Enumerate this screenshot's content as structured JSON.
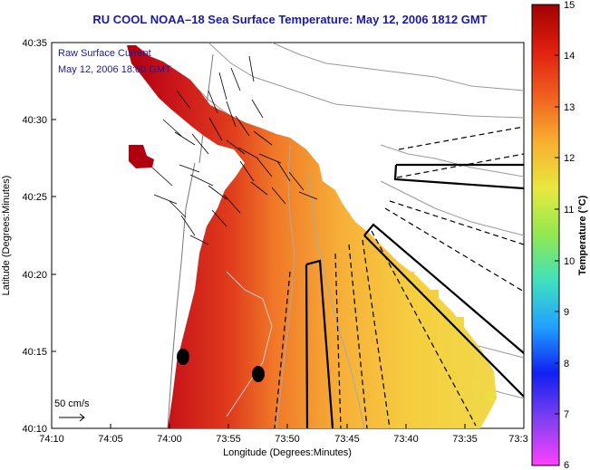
{
  "title": "RU COOL  NOAA–18  Sea Surface Temperature:  May 12, 2006 1812 GMT",
  "annotation": {
    "line1": "Raw Surface Current",
    "line2": "May 12, 2006 18:00 GMT"
  },
  "scale_label": "50 cm/s",
  "axes": {
    "xlabel": "Longitude (Degrees:Minutes)",
    "ylabel": "Latitude (Degrees:Minutes)",
    "x_ticks": [
      "74:10",
      "74:05",
      "74:00",
      "73:55",
      "73:50",
      "73:45",
      "73:40",
      "73:35",
      "73:3"
    ],
    "y_ticks": [
      "40:35",
      "40:30",
      "40:25",
      "40:20",
      "40:15",
      "40:10"
    ]
  },
  "colorbar": {
    "label": "Temperature (°C)",
    "ticks": [
      "15",
      "14",
      "13",
      "12",
      "11",
      "10",
      "9",
      "8",
      "7",
      "6"
    ],
    "range": [
      6,
      15
    ],
    "colors": [
      "#b00000",
      "#e02010",
      "#f06020",
      "#f8b030",
      "#e8e840",
      "#90e850",
      "#40e0c0",
      "#20a0ff",
      "#1020f0",
      "#8040f0",
      "#ff40ff"
    ]
  },
  "colors": {
    "title": "#1a1aa0",
    "warm": "#c8141a",
    "mid": "#f07828",
    "cool": "#f5c840",
    "coast": "#e8e8e8"
  }
}
